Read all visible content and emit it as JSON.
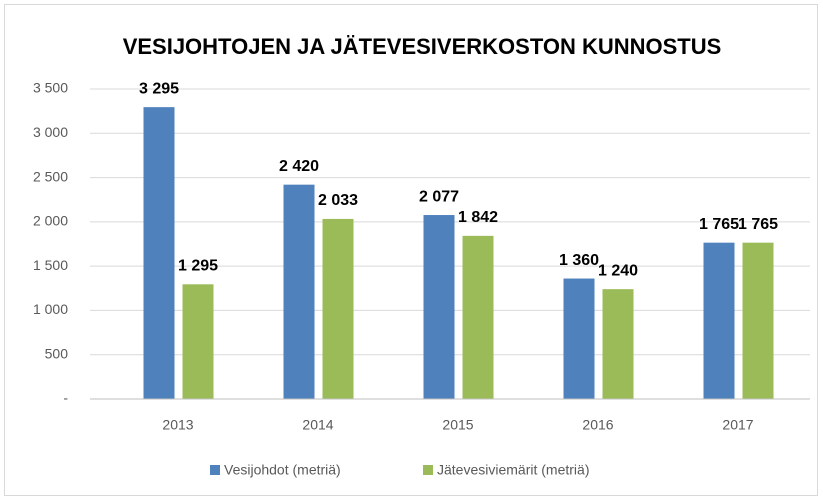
{
  "chart_data": {
    "type": "bar",
    "title": "VESIJOHTOJEN JA JÄTEVESIVERKOSTON KUNNOSTUS",
    "categories": [
      "2013",
      "2014",
      "2015",
      "2016",
      "2017"
    ],
    "series": [
      {
        "name": "Vesijohdot (metriä)",
        "color": "#4f81bd",
        "values": [
          3295,
          2420,
          2077,
          1360,
          1765
        ],
        "value_labels": [
          "3 295",
          "2 420",
          "2 077",
          "1 360",
          "1 765"
        ]
      },
      {
        "name": "Jätevesiviemärit (metriä)",
        "color": "#9bbb59",
        "values": [
          1295,
          2033,
          1842,
          1240,
          1765
        ],
        "value_labels": [
          "1 295",
          "2 033",
          "1 842",
          "1 240",
          "1 765"
        ]
      }
    ],
    "ylim": [
      0,
      3500
    ],
    "yticks": [
      {
        "value": 0,
        "label": "-"
      },
      500,
      {
        "value": 1000,
        "label": "1 000"
      },
      {
        "value": 1500,
        "label": "1 500"
      },
      {
        "value": 2000,
        "label": "2 000"
      },
      {
        "value": 2500,
        "label": "2 500"
      },
      {
        "value": 3000,
        "label": "3 000"
      },
      {
        "value": 3500,
        "label": "3 500"
      }
    ],
    "grid": true,
    "legend": "bottom"
  }
}
